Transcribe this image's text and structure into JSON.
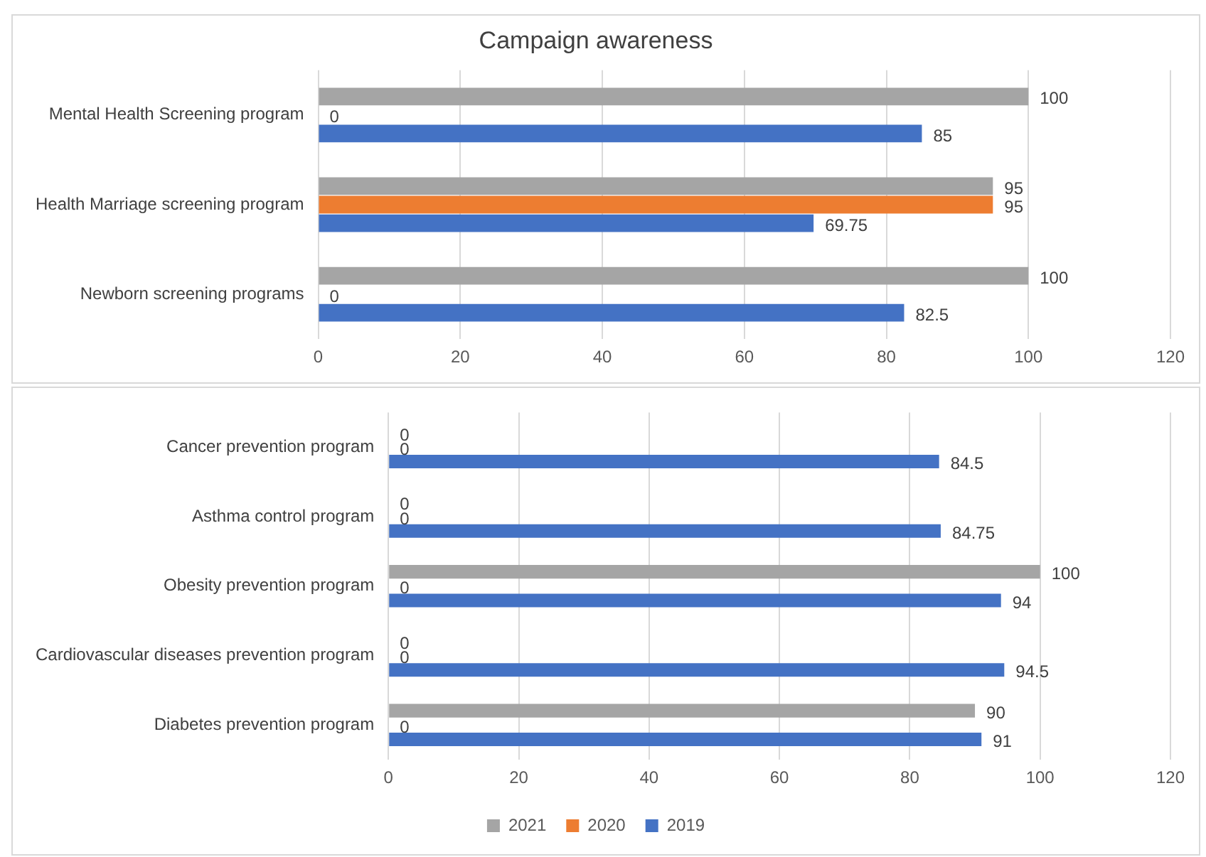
{
  "chart_data": [
    {
      "type": "bar",
      "title": "Campaign awareness",
      "orientation": "horizontal",
      "categories": [
        "Mental Health Screening program",
        "Health Marriage screening program",
        "Newborn screening programs"
      ],
      "series": [
        {
          "color": "#a5a5a5",
          "values": [
            100,
            95,
            100
          ]
        },
        {
          "color": "#ed7d31",
          "values": [
            0,
            95,
            0
          ]
        },
        {
          "color": "#4472c4",
          "values": [
            85,
            69.75,
            82.5
          ]
        }
      ],
      "xlim": [
        0,
        120
      ],
      "xticks": [
        0,
        20,
        40,
        60,
        80,
        100,
        120
      ],
      "grid": "x",
      "data_labels": true,
      "legend": false
    },
    {
      "type": "bar",
      "orientation": "horizontal",
      "categories": [
        "Cancer prevention program",
        "Asthma control program",
        "Obesity prevention program",
        "Cardiovascular diseases prevention program",
        "Diabetes prevention program"
      ],
      "series": [
        {
          "name": "2021",
          "color": "#a5a5a5",
          "values": [
            0,
            0,
            100,
            0,
            90
          ]
        },
        {
          "name": "2020",
          "color": "#ed7d31",
          "values": [
            0,
            0,
            0,
            0,
            0
          ]
        },
        {
          "name": "2019",
          "color": "#4472c4",
          "values": [
            84.5,
            84.75,
            94,
            94.5,
            91
          ]
        }
      ],
      "xlim": [
        0,
        120
      ],
      "xticks": [
        0,
        20,
        40,
        60,
        80,
        100,
        120
      ],
      "grid": "x",
      "data_labels": true,
      "legend": "bottom"
    }
  ]
}
